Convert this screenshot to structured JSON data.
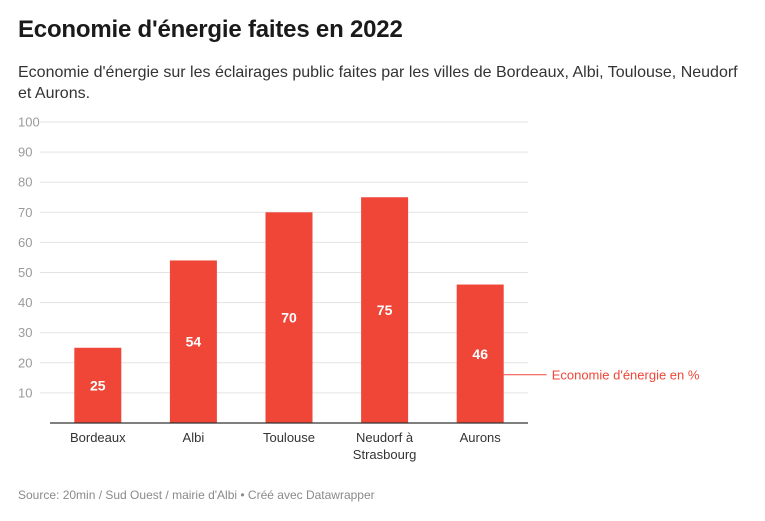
{
  "header": {
    "title": "Economie d'énergie faites en 2022",
    "subtitle": "Economie d'énergie sur les éclairages public faites par les villes de Bordeaux, Albi, Toulouse, Neudorf et Aurons."
  },
  "footer": {
    "source": "Source: 20min / Sud Ouest / mairie d'Albi • Créé avec Datawrapper"
  },
  "colors": {
    "bar": "#ef4638",
    "grid": "#e3e3e3",
    "axis": "#333333",
    "annotation": "#ef4638"
  },
  "chart_data": {
    "type": "bar",
    "categories": [
      [
        "Bordeaux"
      ],
      [
        "Albi"
      ],
      [
        "Toulouse"
      ],
      [
        "Neudorf à",
        "Strasbourg"
      ],
      [
        "Aurons"
      ]
    ],
    "series": [
      {
        "name": "Economie d'énergie en %",
        "values": [
          25,
          54,
          70,
          75,
          46
        ]
      }
    ],
    "value_labels": [
      "25",
      "54",
      "70",
      "75",
      "46"
    ],
    "ylim": [
      0,
      100
    ],
    "yticks": [
      10,
      20,
      30,
      40,
      50,
      60,
      70,
      80,
      90,
      100
    ],
    "grid": true,
    "annotation": {
      "text": "Economie d'énergie en %",
      "target": "Aurons"
    }
  }
}
